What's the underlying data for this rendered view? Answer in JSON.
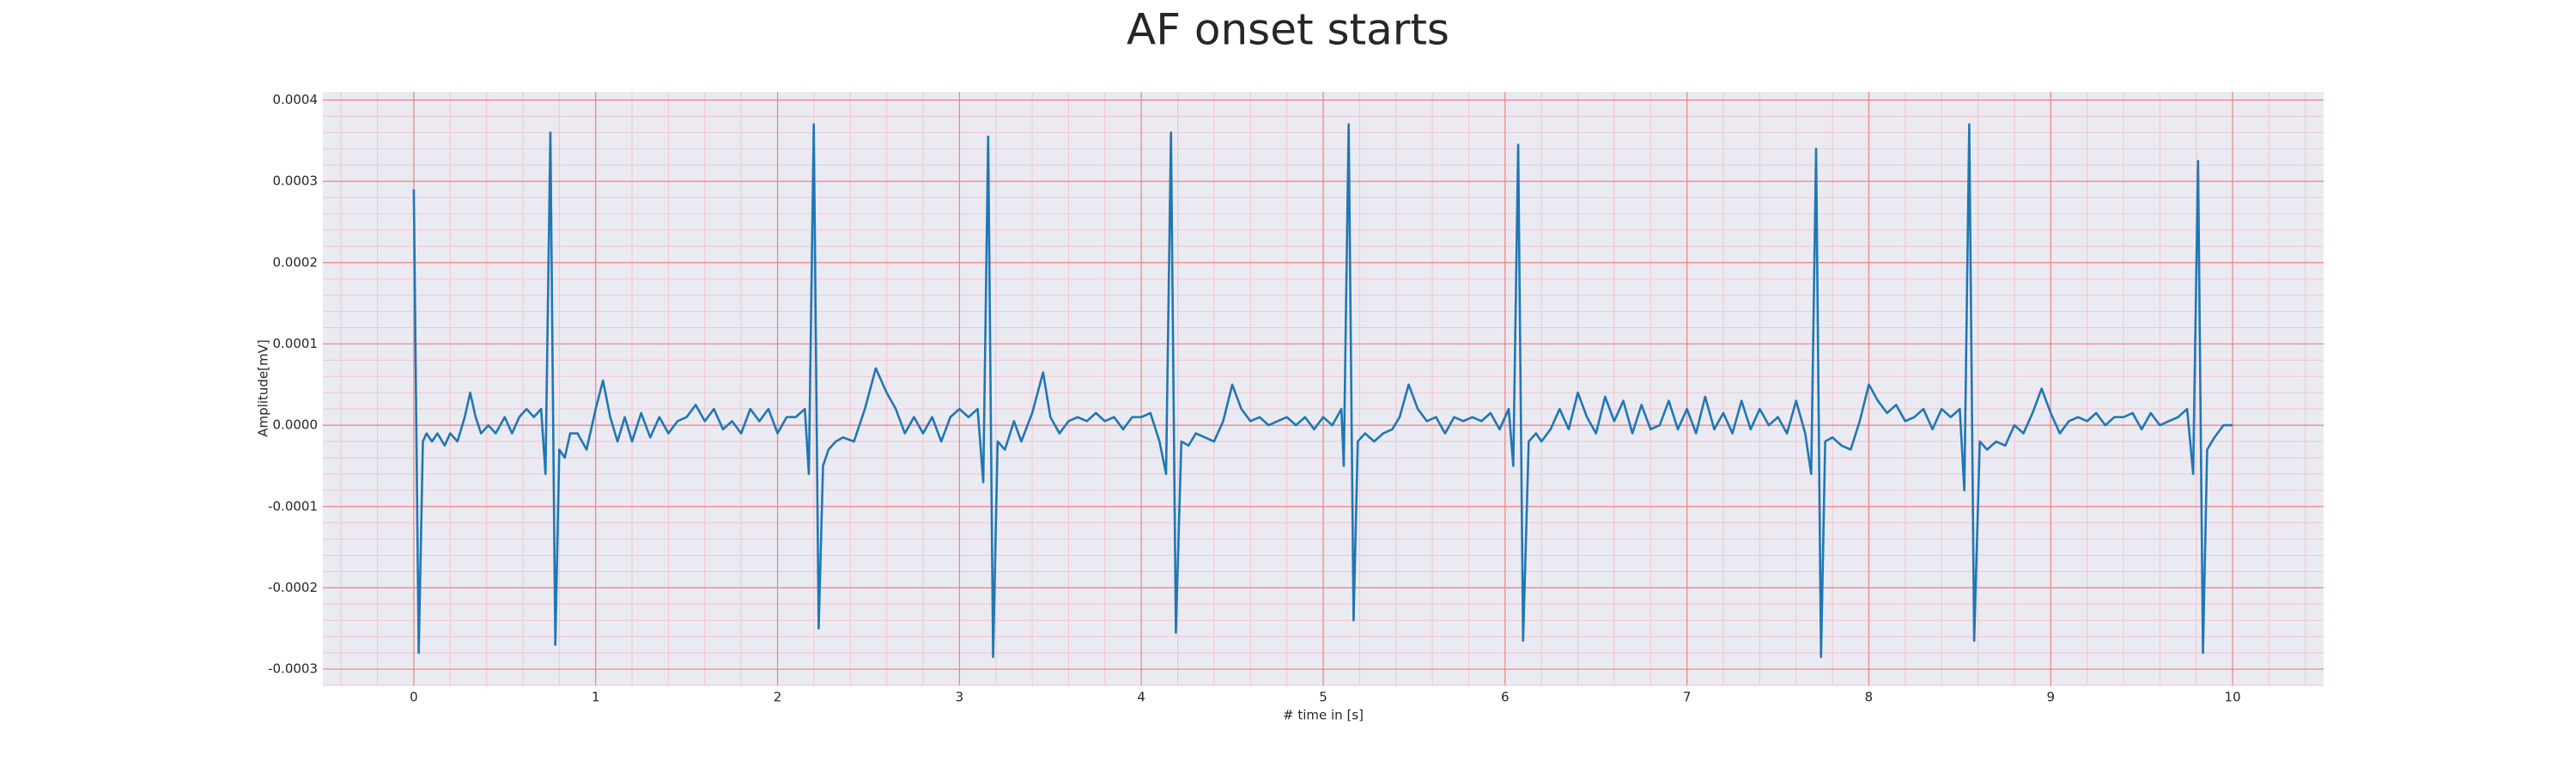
{
  "chart_data": {
    "type": "line",
    "title": "AF onset starts",
    "x_label": "# time in [s]",
    "y_label": "Amplitude[mV]",
    "color": "#1f77b4",
    "background": "#eaeaf2",
    "grid": true,
    "grid_color": "#f08080",
    "minor_grid_color": "#f7c4cc",
    "minor_grid_divisions": 5,
    "xlim": [
      -0.5,
      10.5
    ],
    "ylim": [
      -0.00032,
      0.00041
    ],
    "xticks": [
      0,
      1,
      2,
      3,
      4,
      5,
      6,
      7,
      8,
      9,
      10
    ],
    "yticks": [
      -0.0003,
      -0.0002,
      -0.0001,
      {
        "value": 0,
        "label": "0.0000"
      },
      0.0001,
      0.0002,
      0.0003,
      0.0004
    ],
    "x": [
      0,
      0.027,
      0.05,
      0.07,
      0.1,
      0.13,
      0.17,
      0.2,
      0.24,
      0.28,
      0.31,
      0.34,
      0.37,
      0.41,
      0.45,
      0.5,
      0.54,
      0.58,
      0.62,
      0.66,
      0.7,
      0.724,
      0.751,
      0.778,
      0.8,
      0.83,
      0.86,
      0.9,
      0.95,
      1.0,
      1.04,
      1.08,
      1.12,
      1.16,
      1.2,
      1.25,
      1.3,
      1.35,
      1.4,
      1.45,
      1.5,
      1.55,
      1.6,
      1.65,
      1.7,
      1.75,
      1.8,
      1.85,
      1.9,
      1.95,
      2.0,
      2.05,
      2.1,
      2.15,
      2.172,
      2.199,
      2.226,
      2.25,
      2.28,
      2.32,
      2.36,
      2.42,
      2.48,
      2.54,
      2.6,
      2.65,
      2.7,
      2.75,
      2.8,
      2.85,
      2.9,
      2.95,
      3.0,
      3.05,
      3.1,
      3.131,
      3.158,
      3.185,
      3.21,
      3.25,
      3.3,
      3.34,
      3.4,
      3.46,
      3.5,
      3.55,
      3.6,
      3.65,
      3.7,
      3.75,
      3.8,
      3.85,
      3.9,
      3.95,
      4.0,
      4.05,
      4.1,
      4.136,
      4.163,
      4.19,
      4.22,
      4.26,
      4.3,
      4.35,
      4.4,
      4.45,
      4.5,
      4.55,
      4.6,
      4.65,
      4.7,
      4.75,
      4.8,
      4.85,
      4.9,
      4.95,
      5.0,
      5.05,
      5.1,
      5.113,
      5.14,
      5.167,
      5.19,
      5.23,
      5.28,
      5.33,
      5.38,
      5.42,
      5.47,
      5.52,
      5.57,
      5.62,
      5.67,
      5.72,
      5.77,
      5.82,
      5.87,
      5.92,
      5.97,
      6.02,
      6.045,
      6.072,
      6.099,
      6.13,
      6.17,
      6.2,
      6.25,
      6.3,
      6.35,
      6.4,
      6.45,
      6.5,
      6.55,
      6.6,
      6.65,
      6.7,
      6.75,
      6.8,
      6.85,
      6.9,
      6.95,
      7.0,
      7.05,
      7.1,
      7.15,
      7.2,
      7.25,
      7.3,
      7.35,
      7.4,
      7.45,
      7.5,
      7.55,
      7.6,
      7.65,
      7.683,
      7.71,
      7.737,
      7.76,
      7.8,
      7.85,
      7.9,
      7.95,
      8.0,
      8.05,
      8.1,
      8.15,
      8.2,
      8.25,
      8.3,
      8.35,
      8.4,
      8.45,
      8.5,
      8.525,
      8.552,
      8.579,
      8.61,
      8.65,
      8.7,
      8.75,
      8.8,
      8.85,
      8.9,
      8.95,
      9.0,
      9.05,
      9.1,
      9.15,
      9.2,
      9.25,
      9.3,
      9.35,
      9.4,
      9.45,
      9.5,
      9.55,
      9.6,
      9.65,
      9.7,
      9.75,
      9.783,
      9.81,
      9.837,
      9.86,
      9.9,
      9.95,
      10.0
    ],
    "values": [
      0.00029,
      -0.00028,
      -2e-05,
      -1e-05,
      -2e-05,
      -1e-05,
      -2.5e-05,
      -1e-05,
      -2e-05,
      1e-05,
      4e-05,
      1e-05,
      -1e-05,
      0,
      -1e-05,
      1e-05,
      -1e-05,
      1e-05,
      2e-05,
      1e-05,
      2e-05,
      -6e-05,
      0.00036,
      -0.00027,
      -3e-05,
      -4e-05,
      -1e-05,
      -1e-05,
      -3e-05,
      2e-05,
      5.5e-05,
      1e-05,
      -2e-05,
      1e-05,
      -2e-05,
      1.5e-05,
      -1.5e-05,
      1e-05,
      -1e-05,
      5e-06,
      1e-05,
      2.5e-05,
      5e-06,
      2e-05,
      -5e-06,
      5e-06,
      -1e-05,
      2e-05,
      5e-06,
      2e-05,
      -1e-05,
      1e-05,
      1e-05,
      2e-05,
      -6e-05,
      0.00037,
      -0.00025,
      -5e-05,
      -3e-05,
      -2e-05,
      -1.5e-05,
      -2e-05,
      2e-05,
      7e-05,
      4e-05,
      2e-05,
      -1e-05,
      1e-05,
      -1e-05,
      1e-05,
      -2e-05,
      1e-05,
      2e-05,
      1e-05,
      2e-05,
      -7e-05,
      0.000355,
      -0.000285,
      -2e-05,
      -3e-05,
      5e-06,
      -2e-05,
      1.5e-05,
      6.5e-05,
      1e-05,
      -1e-05,
      5e-06,
      1e-05,
      5e-06,
      1.5e-05,
      5e-06,
      1e-05,
      -5e-06,
      1e-05,
      1e-05,
      1.5e-05,
      -2e-05,
      -6e-05,
      0.00036,
      -0.000255,
      -2e-05,
      -2.5e-05,
      -1e-05,
      -1.5e-05,
      -2e-05,
      5e-06,
      5e-05,
      2e-05,
      5e-06,
      1e-05,
      0,
      5e-06,
      1e-05,
      0,
      1e-05,
      -5e-06,
      1e-05,
      0,
      2e-05,
      -5e-05,
      0.00037,
      -0.00024,
      -2e-05,
      -1e-05,
      -2e-05,
      -1e-05,
      -5e-06,
      1e-05,
      5e-05,
      2e-05,
      5e-06,
      1e-05,
      -1e-05,
      1e-05,
      5e-06,
      1e-05,
      5e-06,
      1.5e-05,
      -5e-06,
      2e-05,
      -5e-05,
      0.000345,
      -0.000265,
      -2e-05,
      -1e-05,
      -2e-05,
      -5e-06,
      2e-05,
      -5e-06,
      4e-05,
      1e-05,
      -1e-05,
      3.5e-05,
      5e-06,
      3e-05,
      -1e-05,
      2.5e-05,
      -5e-06,
      0,
      3e-05,
      -5e-06,
      2e-05,
      -1e-05,
      3.5e-05,
      -5e-06,
      1.5e-05,
      -1e-05,
      3e-05,
      -5e-06,
      2e-05,
      0,
      1e-05,
      -1e-05,
      3e-05,
      -1e-05,
      -6e-05,
      0.00034,
      -0.000285,
      -2e-05,
      -1.5e-05,
      -2.5e-05,
      -3e-05,
      5e-06,
      5e-05,
      3e-05,
      1.5e-05,
      2.5e-05,
      5e-06,
      1e-05,
      2e-05,
      -5e-06,
      2e-05,
      1e-05,
      2e-05,
      -8e-05,
      0.00037,
      -0.000265,
      -2e-05,
      -3e-05,
      -2e-05,
      -2.5e-05,
      0,
      -1e-05,
      1.5e-05,
      4.5e-05,
      1.5e-05,
      -1e-05,
      5e-06,
      1e-05,
      5e-06,
      1.5e-05,
      0,
      1e-05,
      1e-05,
      1.5e-05,
      -5e-06,
      1.5e-05,
      0,
      5e-06,
      1e-05,
      2e-05,
      -6e-05,
      0.000325,
      -0.00028,
      -3e-05,
      -1.5e-05,
      0,
      0
    ]
  }
}
